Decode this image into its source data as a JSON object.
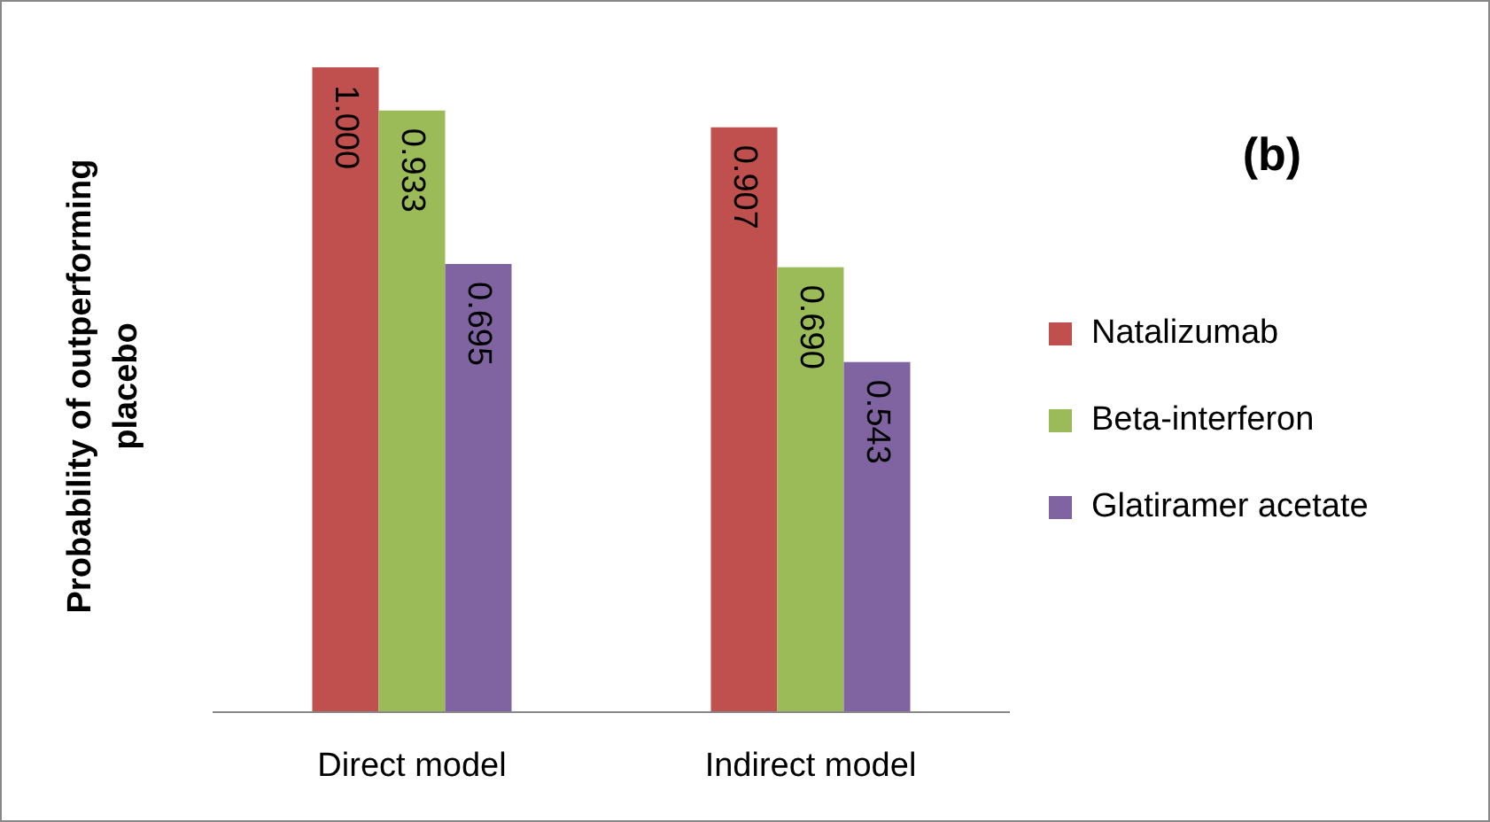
{
  "chart_data": {
    "type": "bar",
    "title": "(b)",
    "ylabel": "Probability of outperforming placebo",
    "categories": [
      "Direct model",
      "Indirect model"
    ],
    "series": [
      {
        "name": "Natalizumab",
        "color": "#c0504d",
        "values": [
          1.0,
          0.907
        ],
        "value_labels": [
          "1.000",
          "0.907"
        ]
      },
      {
        "name": "Beta-interferon",
        "color": "#9bbb59",
        "values": [
          0.933,
          0.69
        ],
        "value_labels": [
          "0.933",
          "0.690"
        ]
      },
      {
        "name": "Glatiramer acetate",
        "color": "#8064a2",
        "values": [
          0.695,
          0.543
        ],
        "value_labels": [
          "0.695",
          "0.543"
        ]
      }
    ],
    "legend": "right"
  }
}
